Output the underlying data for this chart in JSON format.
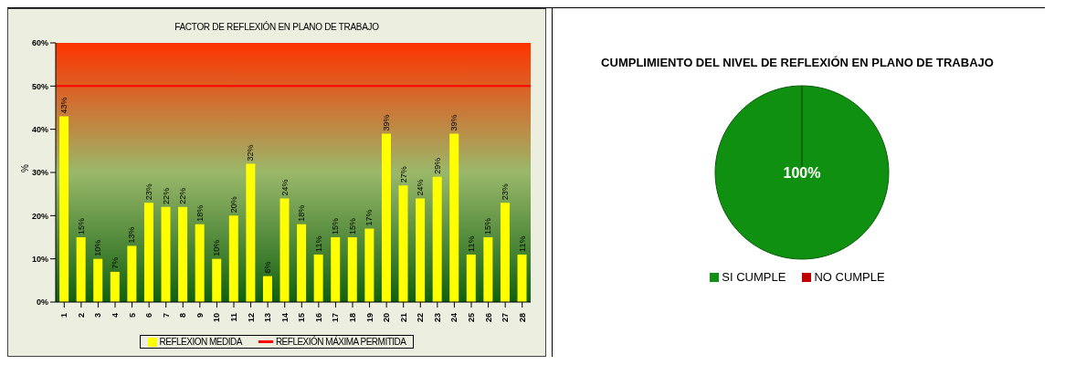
{
  "chart_data": [
    {
      "type": "bar",
      "title": "FACTOR DE REFLEXIÓN EN PLANO DE TRABAJO",
      "ylabel": "%",
      "categories": [
        "1",
        "2",
        "3",
        "4",
        "5",
        "6",
        "7",
        "8",
        "9",
        "10",
        "11",
        "12",
        "13",
        "14",
        "15",
        "16",
        "17",
        "18",
        "19",
        "20",
        "21",
        "22",
        "23",
        "24",
        "25",
        "26",
        "27",
        "28"
      ],
      "series": [
        {
          "name": "REFLEXION MEDIDA",
          "color": "#ffff00",
          "values": [
            43,
            15,
            10,
            7,
            13,
            23,
            22,
            22,
            18,
            10,
            20,
            32,
            6,
            24,
            18,
            11,
            15,
            15,
            17,
            39,
            27,
            24,
            29,
            39,
            11,
            15,
            23,
            11
          ],
          "value_labels": [
            "43%",
            "15%",
            "10%",
            "7%",
            "13%",
            "23%",
            "22%",
            "22%",
            "18%",
            "10%",
            "20%",
            "32%",
            "6%",
            "24%",
            "18%",
            "11%",
            "15%",
            "15%",
            "17%",
            "39%",
            "27%",
            "24%",
            "29%",
            "39%",
            "11%",
            "15%",
            "23%",
            "11%"
          ]
        }
      ],
      "ylim": [
        0,
        60
      ],
      "yticks": [
        {
          "value": 0,
          "label": "0%"
        },
        {
          "value": 10,
          "label": "10%"
        },
        {
          "value": 20,
          "label": "20%"
        },
        {
          "value": 30,
          "label": "30%"
        },
        {
          "value": 40,
          "label": "40%"
        },
        {
          "value": 50,
          "label": "50%"
        },
        {
          "value": 60,
          "label": "60%"
        }
      ],
      "ref_lines": [
        {
          "axis": "y",
          "value": 50,
          "label": "REFLEXIÓN MÁXIMA PERMITIDA",
          "color": "#ff0000"
        }
      ],
      "legend": "bottom"
    },
    {
      "type": "pie",
      "title": "CUMPLIMIENTO DEL NIVEL DE REFLEXIÓN EN PLANO DE TRABAJO",
      "categories": [
        "SI CUMPLE",
        "NO CUMPLE"
      ],
      "values": [
        100,
        0
      ],
      "colors": [
        "#109010",
        "#c00000"
      ],
      "value_labels": [
        "100%",
        null
      ],
      "legend": "bottom"
    }
  ]
}
